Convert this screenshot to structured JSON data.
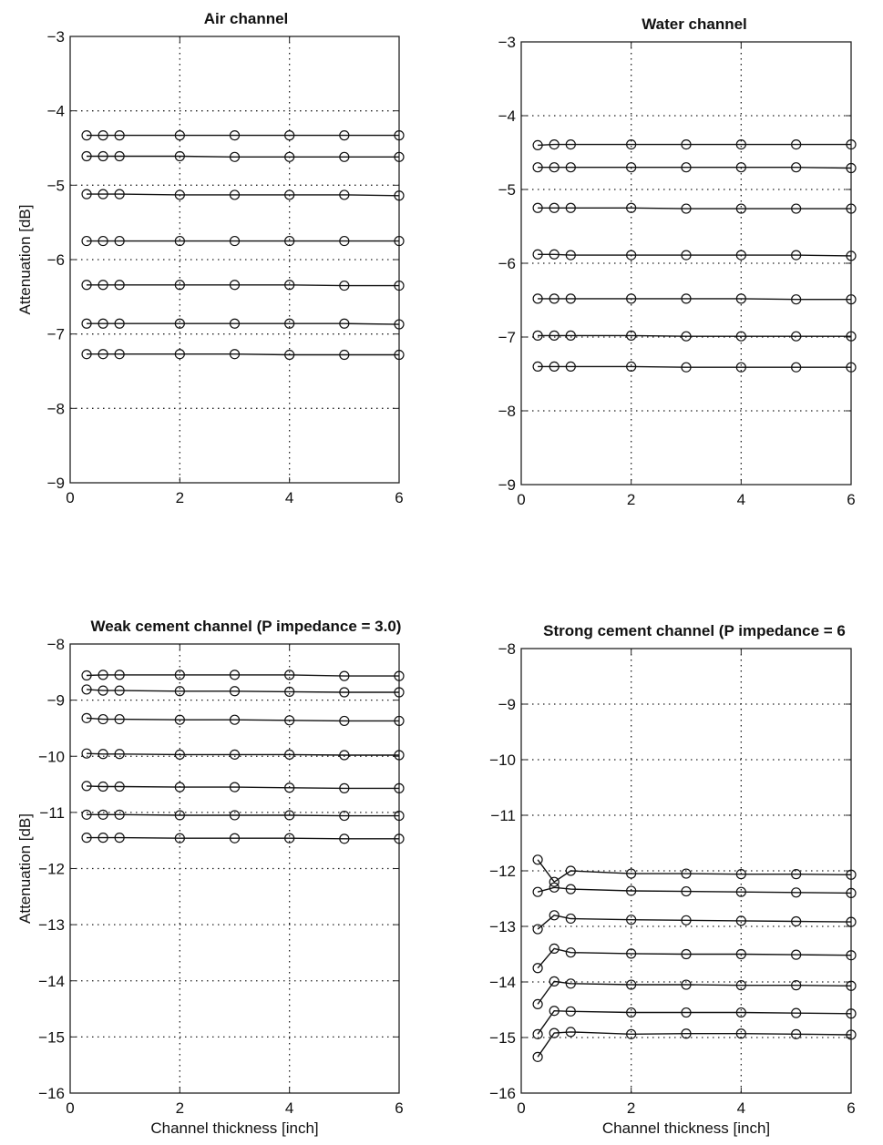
{
  "chart_data": [
    {
      "type": "line",
      "title": "Air channel",
      "xlabel": "",
      "ylabel": "Attenuation [dB]",
      "xlim": [
        0,
        6
      ],
      "ylim": [
        -9,
        -3
      ],
      "xticks": [
        "0",
        "2",
        "4",
        "6"
      ],
      "yticks": [
        "-3",
        "-4",
        "-5",
        "-6",
        "-7",
        "-8",
        "-9"
      ],
      "grid": true,
      "marker": "circle",
      "x": [
        0.3,
        0.6,
        0.9,
        2,
        3,
        4,
        5,
        6
      ],
      "series": [
        {
          "values": [
            -4.33,
            -4.33,
            -4.33,
            -4.33,
            -4.33,
            -4.33,
            -4.33,
            -4.33
          ]
        },
        {
          "values": [
            -4.61,
            -4.61,
            -4.61,
            -4.61,
            -4.62,
            -4.62,
            -4.62,
            -4.62
          ]
        },
        {
          "values": [
            -5.12,
            -5.12,
            -5.12,
            -5.13,
            -5.13,
            -5.13,
            -5.13,
            -5.14
          ]
        },
        {
          "values": [
            -5.75,
            -5.75,
            -5.75,
            -5.75,
            -5.75,
            -5.75,
            -5.75,
            -5.75
          ]
        },
        {
          "values": [
            -6.34,
            -6.34,
            -6.34,
            -6.34,
            -6.34,
            -6.34,
            -6.35,
            -6.35
          ]
        },
        {
          "values": [
            -6.86,
            -6.86,
            -6.86,
            -6.86,
            -6.86,
            -6.86,
            -6.86,
            -6.87
          ]
        },
        {
          "values": [
            -7.27,
            -7.27,
            -7.27,
            -7.27,
            -7.27,
            -7.28,
            -7.28,
            -7.28
          ]
        }
      ]
    },
    {
      "type": "line",
      "title": "Water channel",
      "xlabel": "",
      "ylabel": "",
      "xlim": [
        0,
        6
      ],
      "ylim": [
        -9,
        -3
      ],
      "xticks": [
        "0",
        "2",
        "4",
        "6"
      ],
      "yticks": [
        "-3",
        "-4",
        "-5",
        "-6",
        "-7",
        "-8",
        "-9"
      ],
      "grid": true,
      "marker": "circle",
      "x": [
        0.3,
        0.6,
        0.9,
        2,
        3,
        4,
        5,
        6
      ],
      "series": [
        {
          "values": [
            -4.4,
            -4.39,
            -4.39,
            -4.39,
            -4.39,
            -4.39,
            -4.39,
            -4.39
          ]
        },
        {
          "values": [
            -4.7,
            -4.7,
            -4.7,
            -4.7,
            -4.7,
            -4.7,
            -4.7,
            -4.71
          ]
        },
        {
          "values": [
            -5.25,
            -5.25,
            -5.25,
            -5.25,
            -5.26,
            -5.26,
            -5.26,
            -5.26
          ]
        },
        {
          "values": [
            -5.88,
            -5.88,
            -5.89,
            -5.89,
            -5.89,
            -5.89,
            -5.89,
            -5.9
          ]
        },
        {
          "values": [
            -6.48,
            -6.48,
            -6.48,
            -6.48,
            -6.48,
            -6.48,
            -6.49,
            -6.49
          ]
        },
        {
          "values": [
            -6.98,
            -6.98,
            -6.98,
            -6.98,
            -6.99,
            -6.99,
            -6.99,
            -6.99
          ]
        },
        {
          "values": [
            -7.4,
            -7.4,
            -7.4,
            -7.4,
            -7.41,
            -7.41,
            -7.41,
            -7.41
          ]
        }
      ]
    },
    {
      "type": "line",
      "title": "Weak cement channel (P impedance = 3.0)",
      "xlabel": "Channel thickness [inch]",
      "ylabel": "Attenuation [dB]",
      "xlim": [
        0,
        6
      ],
      "ylim": [
        -16,
        -8
      ],
      "xticks": [
        "0",
        "2",
        "4",
        "6"
      ],
      "yticks": [
        "-8",
        "-9",
        "-10",
        "-11",
        "-12",
        "-13",
        "-14",
        "-15",
        "-16"
      ],
      "grid": true,
      "marker": "circle",
      "x": [
        0.3,
        0.6,
        0.9,
        2,
        3,
        4,
        5,
        6
      ],
      "series": [
        {
          "values": [
            -8.56,
            -8.55,
            -8.55,
            -8.55,
            -8.55,
            -8.55,
            -8.57,
            -8.57
          ]
        },
        {
          "values": [
            -8.81,
            -8.83,
            -8.83,
            -8.84,
            -8.84,
            -8.85,
            -8.86,
            -8.86
          ]
        },
        {
          "values": [
            -9.32,
            -9.34,
            -9.34,
            -9.35,
            -9.35,
            -9.36,
            -9.37,
            -9.37
          ]
        },
        {
          "values": [
            -9.95,
            -9.96,
            -9.96,
            -9.97,
            -9.97,
            -9.97,
            -9.98,
            -9.98
          ]
        },
        {
          "values": [
            -10.53,
            -10.54,
            -10.54,
            -10.55,
            -10.55,
            -10.56,
            -10.57,
            -10.57
          ]
        },
        {
          "values": [
            -11.04,
            -11.04,
            -11.04,
            -11.05,
            -11.05,
            -11.05,
            -11.06,
            -11.06
          ]
        },
        {
          "values": [
            -11.45,
            -11.45,
            -11.45,
            -11.46,
            -11.46,
            -11.46,
            -11.47,
            -11.47
          ]
        }
      ]
    },
    {
      "type": "line",
      "title": "Strong cement channel (P impedance = 6",
      "xlabel": "Channel thickness [inch]",
      "ylabel": "",
      "xlim": [
        0,
        6
      ],
      "ylim": [
        -16,
        -8
      ],
      "xticks": [
        "0",
        "2",
        "4",
        "6"
      ],
      "yticks": [
        "-8",
        "-9",
        "-10",
        "-11",
        "-12",
        "-13",
        "-14",
        "-15",
        "-16"
      ],
      "grid": true,
      "marker": "circle",
      "x": [
        0.3,
        0.6,
        0.9,
        2,
        3,
        4,
        5,
        6
      ],
      "series": [
        {
          "values": [
            -11.8,
            -12.2,
            -12.0,
            -12.05,
            -12.05,
            -12.06,
            -12.06,
            -12.07
          ]
        },
        {
          "values": [
            -12.38,
            -12.3,
            -12.33,
            -12.36,
            -12.37,
            -12.38,
            -12.39,
            -12.4
          ]
        },
        {
          "values": [
            -13.05,
            -12.8,
            -12.86,
            -12.88,
            -12.89,
            -12.9,
            -12.91,
            -12.92
          ]
        },
        {
          "values": [
            -13.75,
            -13.4,
            -13.47,
            -13.49,
            -13.5,
            -13.5,
            -13.51,
            -13.52
          ]
        },
        {
          "values": [
            -14.4,
            -13.99,
            -14.03,
            -14.05,
            -14.05,
            -14.06,
            -14.06,
            -14.07
          ]
        },
        {
          "values": [
            -14.94,
            -14.52,
            -14.53,
            -14.55,
            -14.55,
            -14.55,
            -14.56,
            -14.57
          ]
        },
        {
          "values": [
            -15.35,
            -14.92,
            -14.9,
            -14.94,
            -14.93,
            -14.93,
            -14.94,
            -14.95
          ]
        }
      ]
    }
  ]
}
